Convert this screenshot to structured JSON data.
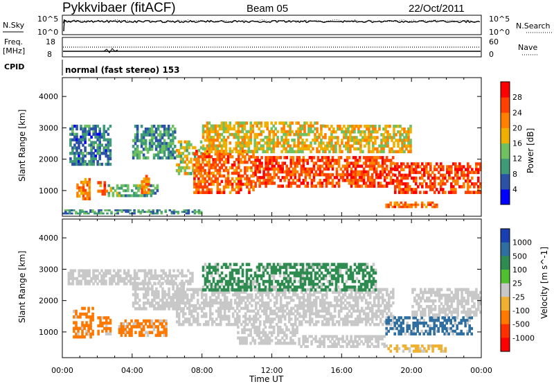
{
  "header": {
    "station": "Pykkvibaer (fitACF)",
    "beam": "Beam 05",
    "date": "22/Oct/2011"
  },
  "panels": {
    "noise": {
      "left_label": "N.Sky",
      "left_ticks": [
        "10^5",
        "10^0"
      ],
      "right_label": "N.Search",
      "right_ticks": [
        "10^5",
        "10^0"
      ]
    },
    "freq": {
      "left_label_line1": "Freq.",
      "left_label_line2": "[MHz]",
      "left_ticks": [
        "18",
        "8"
      ],
      "right_label": "Nave",
      "right_ticks": [
        "60",
        "0"
      ]
    },
    "cpid": {
      "label": "CPID",
      "text": "normal (fast stereo) 153"
    }
  },
  "chart_data": [
    {
      "type": "heatmap",
      "title": "",
      "xlabel": "Time UT",
      "ylabel": "Slant Range [km]",
      "x_ticks": [
        "00:00",
        "04:00",
        "08:00",
        "12:00",
        "16:00",
        "20:00",
        "00:00"
      ],
      "xlim_hours": [
        0,
        24
      ],
      "y_ticks": [
        1000,
        2000,
        3000,
        4000
      ],
      "ylim": [
        180,
        4600
      ],
      "colorbar": {
        "label": "Power [dB]",
        "range": [
          0,
          32
        ],
        "ticks": [
          4,
          8,
          12,
          16,
          20,
          24,
          28
        ],
        "colors": [
          "#0000ff",
          "#2c52a8",
          "#3f9a78",
          "#6ec060",
          "#f0b000",
          "#ff8000",
          "#ff4000",
          "#ff0000"
        ]
      },
      "echo_regions": [
        {
          "t0": 0.4,
          "t1": 2.8,
          "r0": 1800,
          "r1": 3100,
          "value": 8
        },
        {
          "t0": 0.8,
          "t1": 1.6,
          "r0": 700,
          "r1": 1400,
          "value": 22
        },
        {
          "t0": 2.0,
          "t1": 2.6,
          "r0": 850,
          "r1": 1300,
          "value": 24
        },
        {
          "t0": 2.6,
          "t1": 5.5,
          "r0": 800,
          "r1": 1200,
          "value": 12
        },
        {
          "t0": 4.0,
          "t1": 6.5,
          "r0": 2000,
          "r1": 3100,
          "value": 10
        },
        {
          "t0": 4.5,
          "t1": 5.0,
          "r0": 900,
          "r1": 1500,
          "value": 22
        },
        {
          "t0": 6.5,
          "t1": 8.0,
          "r0": 1500,
          "r1": 2600,
          "value": 16
        },
        {
          "t0": 7.5,
          "t1": 11.0,
          "r0": 900,
          "r1": 2300,
          "value": 24
        },
        {
          "t0": 8.0,
          "t1": 15.0,
          "r0": 2200,
          "r1": 3200,
          "value": 18
        },
        {
          "t0": 11.0,
          "t1": 19.0,
          "r0": 1100,
          "r1": 2100,
          "value": 26
        },
        {
          "t0": 15.0,
          "t1": 20.0,
          "r0": 2200,
          "r1": 3100,
          "value": 18
        },
        {
          "t0": 19.0,
          "t1": 24.0,
          "r0": 900,
          "r1": 1900,
          "value": 26
        },
        {
          "t0": 18.5,
          "t1": 21.5,
          "r0": 450,
          "r1": 650,
          "value": 24
        },
        {
          "t0": 0.0,
          "t1": 8.0,
          "r0": 250,
          "r1": 400,
          "value": 10
        }
      ]
    },
    {
      "type": "heatmap",
      "title": "",
      "xlabel": "Time UT",
      "ylabel": "Slant Range [km]",
      "x_ticks": [
        "00:00",
        "04:00",
        "08:00",
        "12:00",
        "16:00",
        "20:00",
        "00:00"
      ],
      "xlim_hours": [
        0,
        24
      ],
      "y_ticks": [
        1000,
        2000,
        3000,
        4000
      ],
      "ylim": [
        180,
        4600
      ],
      "colorbar": {
        "label": "Velocity [m s^-1]",
        "ticks": [
          "1000",
          "500",
          "100",
          "25",
          "-25",
          "-100",
          "-500",
          "-1000"
        ],
        "colors": [
          "#1a3fb0",
          "#2e6ea0",
          "#2e8c50",
          "#50c030",
          "#c8c8c8",
          "#f0b030",
          "#ff7800",
          "#ff3000",
          "#ff0000"
        ]
      },
      "echo_regions": [
        {
          "t0": 0.3,
          "t1": 7.5,
          "r0": 2500,
          "r1": 3000,
          "value": "ground"
        },
        {
          "t0": 0.6,
          "t1": 1.8,
          "r0": 800,
          "r1": 1800,
          "value": -500
        },
        {
          "t0": 2.0,
          "t1": 2.8,
          "r0": 900,
          "r1": 1500,
          "value": -500
        },
        {
          "t0": 3.2,
          "t1": 6.0,
          "r0": 850,
          "r1": 1400,
          "value": -500
        },
        {
          "t0": 4.0,
          "t1": 7.0,
          "r0": 1700,
          "r1": 2600,
          "value": "ground"
        },
        {
          "t0": 6.5,
          "t1": 19.0,
          "r0": 1200,
          "r1": 2400,
          "value": "ground"
        },
        {
          "t0": 8.0,
          "t1": 18.0,
          "r0": 2300,
          "r1": 3200,
          "value": 100
        },
        {
          "t0": 10.0,
          "t1": 13.5,
          "r0": 600,
          "r1": 1200,
          "value": "ground"
        },
        {
          "t0": 13.5,
          "t1": 18.5,
          "r0": 500,
          "r1": 900,
          "value": "ground"
        },
        {
          "t0": 18.5,
          "t1": 23.5,
          "r0": 900,
          "r1": 1500,
          "value": 500
        },
        {
          "t0": 18.5,
          "t1": 22.0,
          "r0": 350,
          "r1": 600,
          "value": -100
        },
        {
          "t0": 20.0,
          "t1": 24.0,
          "r0": 1500,
          "r1": 2400,
          "value": "ground"
        }
      ]
    }
  ]
}
